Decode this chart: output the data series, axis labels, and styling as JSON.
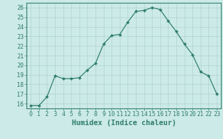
{
  "x": [
    0,
    1,
    2,
    3,
    4,
    5,
    6,
    7,
    8,
    9,
    10,
    11,
    12,
    13,
    14,
    15,
    16,
    17,
    18,
    19,
    20,
    21,
    22,
    23
  ],
  "y": [
    15.8,
    15.8,
    16.7,
    18.9,
    18.6,
    18.6,
    18.7,
    19.5,
    20.2,
    22.2,
    23.1,
    23.2,
    24.5,
    25.6,
    25.7,
    26.0,
    25.8,
    24.6,
    23.5,
    22.2,
    21.1,
    19.3,
    18.9,
    17.0
  ],
  "line_color": "#2e7d6e",
  "marker": "D",
  "marker_size": 2.2,
  "bg_color": "#cceae7",
  "grid_color": "#aed4d0",
  "xlabel": "Humidex (Indice chaleur)",
  "xlim": [
    -0.5,
    23.5
  ],
  "ylim": [
    15.5,
    26.5
  ],
  "yticks": [
    16,
    17,
    18,
    19,
    20,
    21,
    22,
    23,
    24,
    25,
    26
  ],
  "xticks": [
    0,
    1,
    2,
    3,
    4,
    5,
    6,
    7,
    8,
    9,
    10,
    11,
    12,
    13,
    14,
    15,
    16,
    17,
    18,
    19,
    20,
    21,
    22,
    23
  ],
  "tick_fontsize": 6.0,
  "xlabel_fontsize": 7.5,
  "tick_color": "#2e7d6e",
  "axis_color": "#2e7d6e",
  "linewidth": 0.9
}
